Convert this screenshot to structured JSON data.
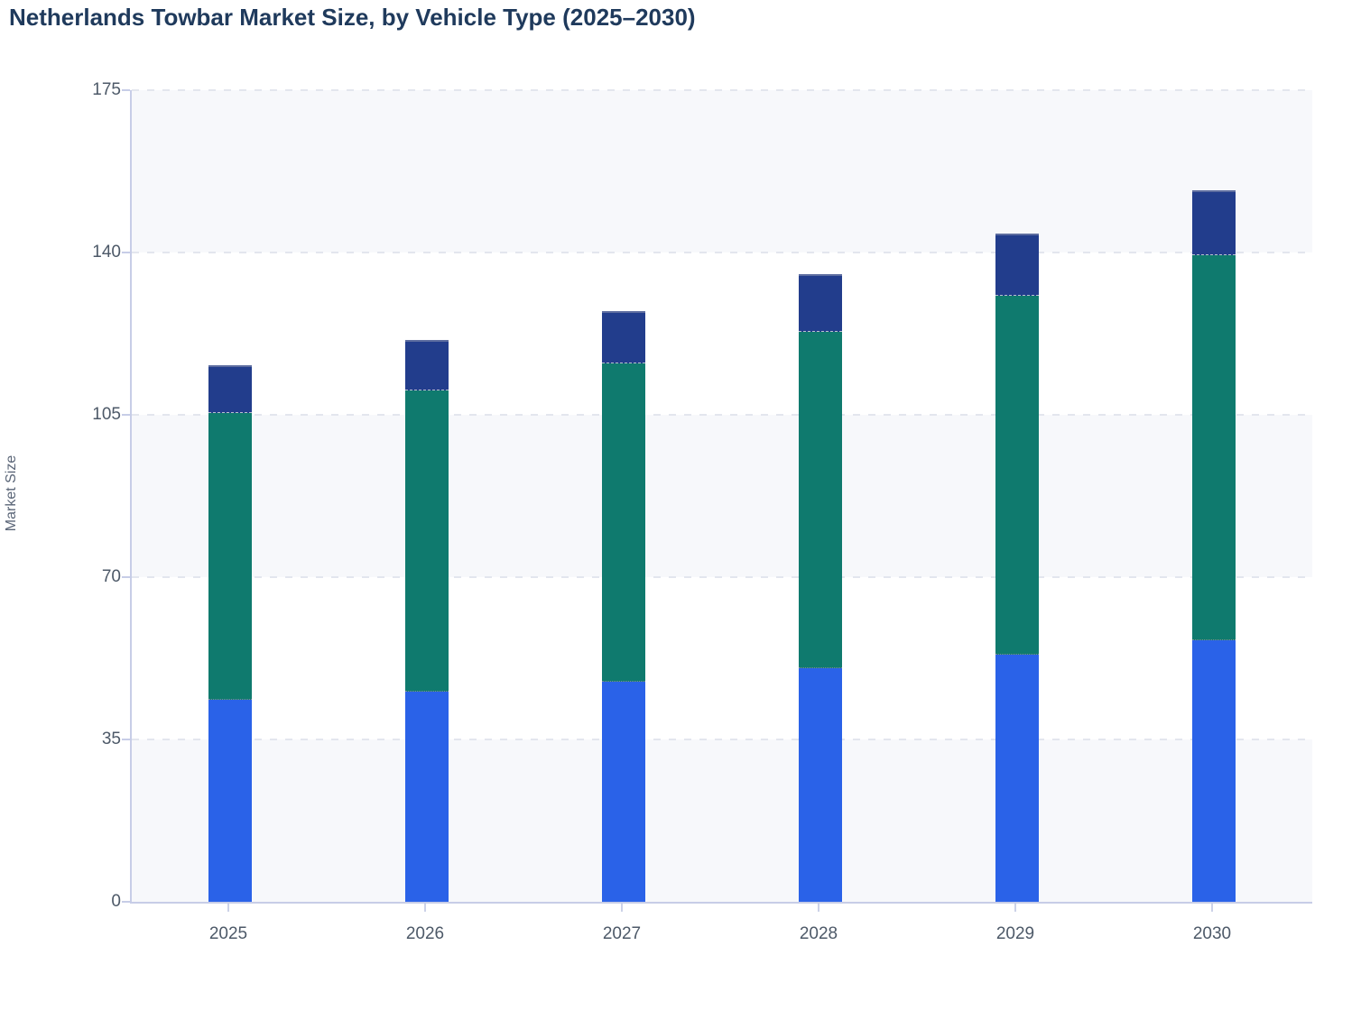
{
  "title": "Netherlands Towbar Market Size, by Vehicle Type (2025–2030)",
  "chart_data": {
    "type": "bar",
    "stacked": true,
    "title": "Netherlands Towbar Market Size, by Vehicle Type (2025–2030)",
    "xlabel": "",
    "ylabel": "Market Size",
    "categories": [
      "2025",
      "2026",
      "2027",
      "2028",
      "2029",
      "2030"
    ],
    "series": [
      {
        "name": "bottom-segment-blue",
        "color": "#2a62e8",
        "values": [
          43.6,
          45.4,
          47.4,
          50.3,
          53.2,
          56.4
        ]
      },
      {
        "name": "middle-segment-teal",
        "color": "#0f7a6e",
        "values": [
          61.7,
          64.8,
          68.6,
          72.6,
          77.5,
          83.1
        ]
      },
      {
        "name": "top-segment-navy",
        "color": "#223d8c",
        "values": [
          10.4,
          10.9,
          11.4,
          12.5,
          13.3,
          13.9
        ]
      }
    ],
    "stack_totals": [
      115.7,
      121.1,
      127.4,
      135.4,
      144.0,
      153.4
    ],
    "ylim": [
      0,
      175
    ],
    "yticks": [
      0,
      35,
      70,
      105,
      140,
      175
    ],
    "grid": "horizontal dashed",
    "plot_bands": "alternating horizontal stripes every 35 units",
    "legend": "none"
  },
  "palette": {
    "title_text": "#1f3a5c",
    "axis_text": "#4d5968",
    "axis_title_text": "#5a6577",
    "axis_line": "#c7cde7",
    "gridline": "#e3e6ee",
    "band_fill": "#f7f8fb",
    "background": "#ffffff"
  }
}
